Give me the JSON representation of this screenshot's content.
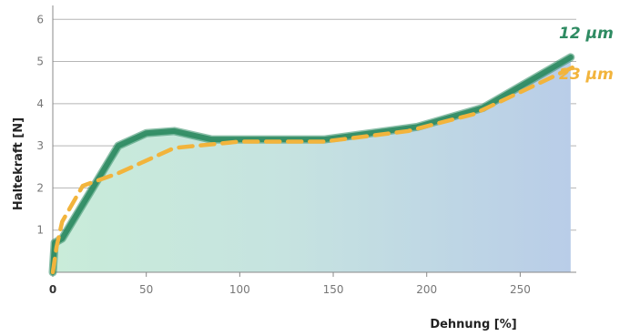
{
  "chart_data": {
    "type": "line",
    "title": "",
    "xlabel": "Dehnung [%]",
    "ylabel": "Haltekraft [N]",
    "xlim": [
      0,
      280
    ],
    "ylim": [
      0,
      6.2
    ],
    "x_ticks": [
      "0",
      "50",
      "100",
      "150",
      "200",
      "250"
    ],
    "y_ticks": [
      "1",
      "2",
      "3",
      "4",
      "5",
      "6"
    ],
    "grid": "horizontal",
    "series": [
      {
        "name": "12 µm",
        "color": "#2e8b62",
        "x": [
          0,
          1,
          5,
          20,
          35,
          50,
          65,
          85,
          110,
          145,
          195,
          230,
          277
        ],
        "y": [
          0,
          0.7,
          0.8,
          1.9,
          3.0,
          3.3,
          3.35,
          3.15,
          3.15,
          3.15,
          3.45,
          3.9,
          5.1
        ]
      },
      {
        "name": "23 µm",
        "color": "#f2b43c",
        "x": [
          0,
          2,
          5,
          16,
          35,
          65,
          100,
          145,
          190,
          225,
          280
        ],
        "y": [
          0,
          0.6,
          1.2,
          2.05,
          2.35,
          2.95,
          3.1,
          3.1,
          3.35,
          3.75,
          4.9
        ]
      }
    ]
  }
}
